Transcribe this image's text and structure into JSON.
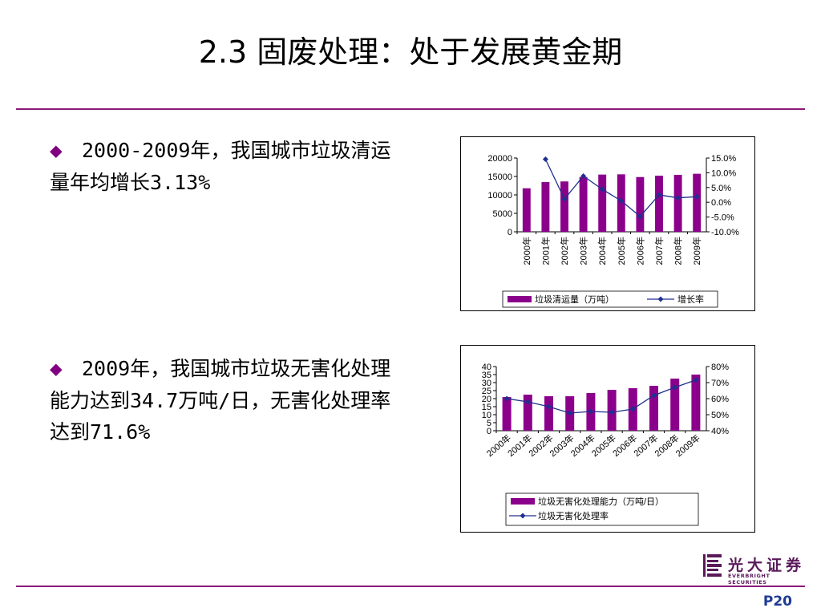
{
  "title": "2.3  固废处理：处于发展黄金期",
  "bullets": [
    {
      "text": "2000-2009年，我国城市垃圾清运量年均增长3.13%"
    },
    {
      "text": "2009年，我国城市垃圾无害化处理能力达到34.7万吨/日，无害化处理率达到71.6%"
    }
  ],
  "colors": {
    "bar": "#8b008b",
    "line": "#1f2f8f",
    "accent": "#8a1a7a"
  },
  "chart_data": [
    {
      "type": "bar",
      "categories": [
        "2000年",
        "2001年",
        "2002年",
        "2003年",
        "2004年",
        "2005年",
        "2006年",
        "2007年",
        "2008年",
        "2009年"
      ],
      "series": [
        {
          "name": "垃圾清运量（万吨）",
          "axis": "left",
          "values": [
            11800,
            13500,
            13650,
            14860,
            15510,
            15580,
            14840,
            15210,
            15440,
            15730
          ]
        },
        {
          "name": "增长率",
          "axis": "right",
          "type": "line",
          "values": [
            null,
            14.6,
            1.1,
            8.9,
            4.4,
            0.5,
            -4.8,
            2.5,
            1.5,
            1.9
          ]
        }
      ],
      "yticks_left": [
        "20000",
        "15000",
        "10000",
        "5000",
        "0"
      ],
      "yticks_right": [
        "15.0%",
        "10.0%",
        "5.0%",
        "0.0%",
        "-5.0%",
        "-10.0%"
      ],
      "ylim_left": [
        0,
        20000
      ],
      "ylim_right": [
        -10,
        15
      ],
      "legend_position": "bottom"
    },
    {
      "type": "bar",
      "categories": [
        "2000年",
        "2001年",
        "2002年",
        "2003年",
        "2004年",
        "2005年",
        "2006年",
        "2007年",
        "2008年",
        "2009年"
      ],
      "series": [
        {
          "name": "垃圾无害化处理能力（万吨/日）",
          "axis": "left",
          "values": [
            21,
            22.5,
            21.5,
            21.5,
            23.5,
            25.5,
            26.5,
            28,
            32.5,
            35
          ]
        },
        {
          "name": "垃圾无害化处理率",
          "axis": "right",
          "type": "line",
          "values": [
            60,
            58,
            55,
            51,
            52,
            51.5,
            53.5,
            62,
            67,
            71.6
          ]
        }
      ],
      "yticks_left": [
        "40",
        "35",
        "30",
        "25",
        "20",
        "15",
        "10",
        "5",
        "0"
      ],
      "yticks_right": [
        "80%",
        "70%",
        "60%",
        "50%",
        "40%"
      ],
      "ylim_left": [
        0,
        40
      ],
      "ylim_right": [
        40,
        80
      ],
      "legend_position": "bottom"
    }
  ],
  "logo": {
    "cn": "光大证券",
    "en": "EVERBRIGHT SECURITIES"
  },
  "page_number": "P20"
}
